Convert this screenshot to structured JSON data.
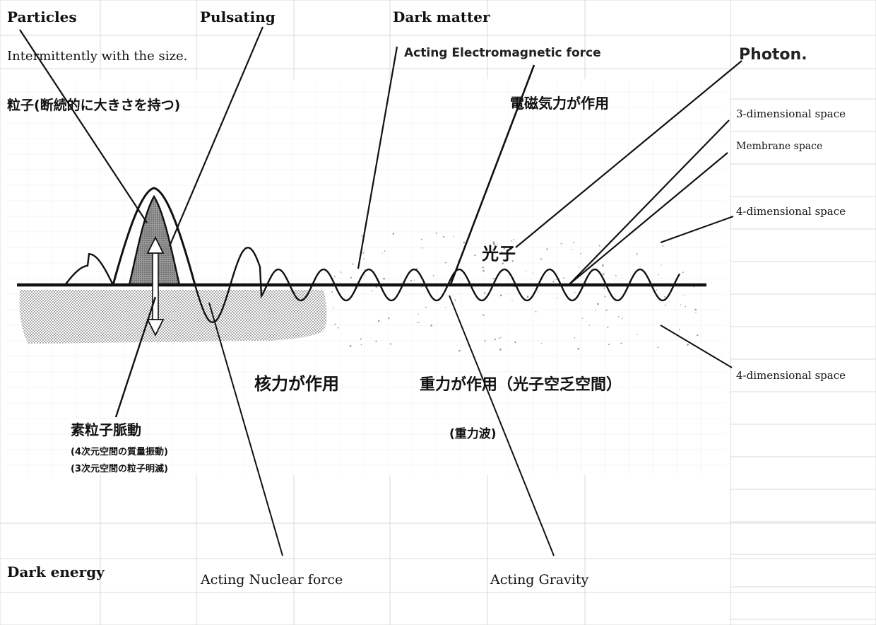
{
  "labels": {
    "particles": "Particles",
    "pulsating": "Pulsating",
    "dark_matter": "Dark matter",
    "intermittent": "Intermittently with the size.",
    "acting_em": "Acting  Electromagnetic force",
    "photon": "Photon.",
    "particle_jp": "粒子(断続的に大きさを持つ)",
    "em_jp": "電磁気力が作用",
    "space_3d": "3-dimensional space",
    "membrane": "Membrane space",
    "space_4d_upper": "4-dimensional space",
    "photon_jp": "光子",
    "space_4d_lower": "4-dimensional space",
    "nuclear_jp": "核力が作用",
    "gravity_jp": "重力が作用（光子空乏空間）",
    "pulse_jp": "素粒子脈動",
    "pulse_sub1": "(4次元空間の質量振動)",
    "pulse_sub2": "(3次元空間の粒子明滅)",
    "gravity_wave_jp": "(重力波)",
    "dark_energy": "Dark energy",
    "acting_nuclear": "Acting  Nuclear force",
    "acting_gravity": "Acting  Gravity"
  },
  "colors": {
    "ink": "#111111",
    "grid": "#d9d9d9",
    "stipple": "#8a8a8a"
  }
}
